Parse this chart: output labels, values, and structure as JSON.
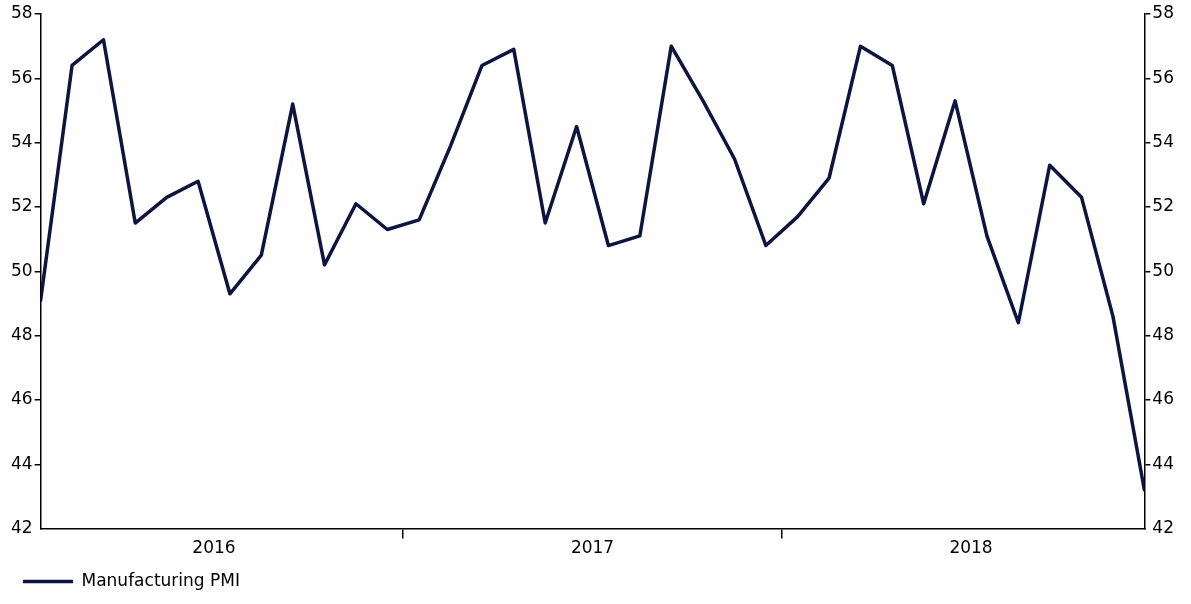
{
  "chart_data": {
    "type": "line",
    "x": [
      2016.042,
      2016.125,
      2016.208,
      2016.292,
      2016.375,
      2016.458,
      2016.542,
      2016.625,
      2016.708,
      2016.792,
      2016.875,
      2016.958,
      2017.042,
      2017.125,
      2017.208,
      2017.292,
      2017.375,
      2017.458,
      2017.542,
      2017.625,
      2017.708,
      2017.792,
      2017.875,
      2017.958,
      2018.042,
      2018.125,
      2018.208,
      2018.292,
      2018.375,
      2018.458,
      2018.542,
      2018.625,
      2018.708,
      2018.792,
      2018.875,
      2018.958
    ],
    "series": [
      {
        "name": "Manufacturing PMI",
        "color": "#0c1445",
        "values": [
          49.1,
          56.4,
          57.2,
          51.5,
          52.3,
          52.8,
          49.3,
          50.5,
          55.2,
          50.2,
          52.1,
          51.3,
          51.6,
          53.9,
          56.4,
          56.9,
          51.5,
          54.5,
          50.8,
          51.1,
          57.0,
          55.3,
          53.5,
          50.8,
          51.7,
          52.9,
          57.0,
          56.4,
          52.1,
          55.3,
          51.1,
          48.4,
          53.3,
          52.3,
          48.6,
          43.2
        ]
      }
    ],
    "xlim": [
      2016.042,
      2018.958
    ],
    "xticks": [
      {
        "value": 2016.5,
        "label": "2016"
      },
      {
        "value": 2017,
        "label": null
      },
      {
        "value": 2017.5,
        "label": "2017"
      },
      {
        "value": 2018,
        "label": null
      },
      {
        "value": 2018.5,
        "label": "2018"
      }
    ],
    "ylim": [
      42,
      58
    ],
    "yticks": [
      42,
      44,
      46,
      48,
      50,
      52,
      54,
      56,
      58
    ],
    "y2lim": [
      42,
      58
    ],
    "y2ticks": [
      42,
      44,
      46,
      48,
      50,
      52,
      54,
      56,
      58
    ],
    "legend": "bottom left",
    "marker": "none",
    "line_style": "solid"
  }
}
